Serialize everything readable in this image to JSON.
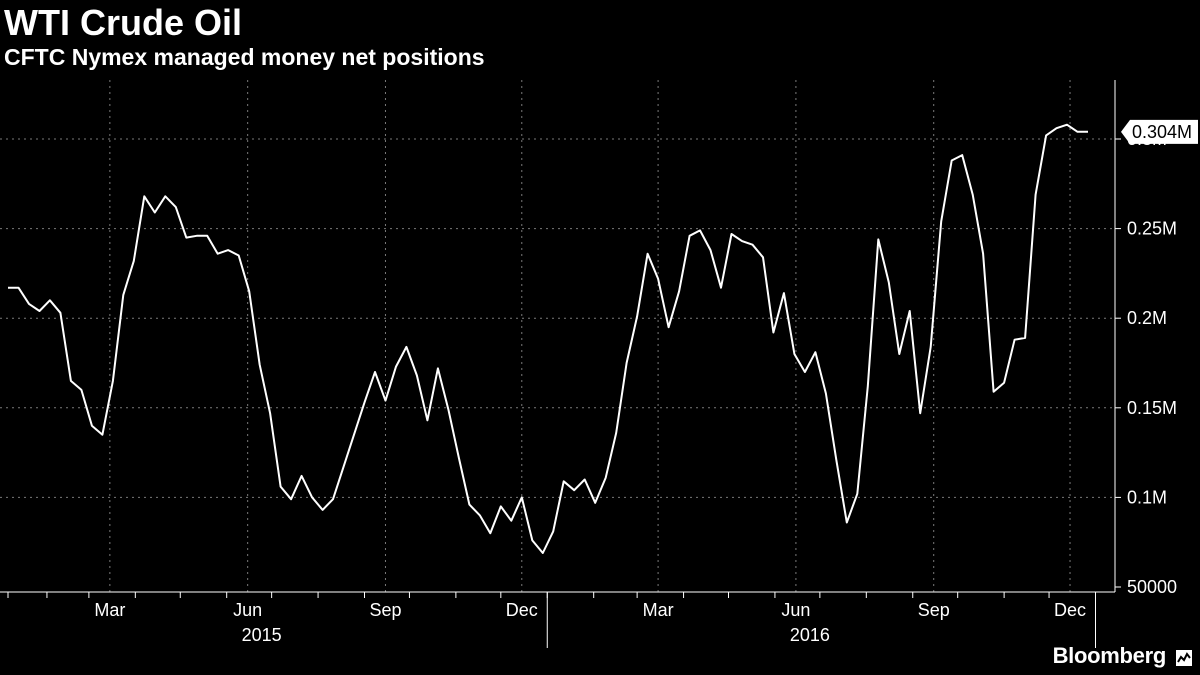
{
  "header": {
    "title": "WTI Crude Oil",
    "subtitle": "CFTC Nymex managed money net positions"
  },
  "footer": {
    "brand": "Bloomberg",
    "brand_icon": "chart-icon"
  },
  "colors": {
    "background": "#000000",
    "line": "#ffffff",
    "grid": "#7a7a7a"
  },
  "chart_data": {
    "type": "line",
    "title": "WTI Crude Oil",
    "subtitle": "CFTC Nymex managed money net positions",
    "y_axis": {
      "position": "right",
      "ticks": [
        {
          "value": 50000,
          "label": "50000"
        },
        {
          "value": 100000,
          "label": "0.1M"
        },
        {
          "value": 150000,
          "label": "0.15M"
        },
        {
          "value": 200000,
          "label": "0.2M"
        },
        {
          "value": 250000,
          "label": "0.25M"
        },
        {
          "value": 300000,
          "label": "0.3M"
        }
      ],
      "ylim": [
        50000,
        330000
      ]
    },
    "x_axis": {
      "range": [
        "2015-01-06",
        "2016-12-27"
      ],
      "month_ticks": [
        {
          "date": "2015-03-15",
          "label": "Mar"
        },
        {
          "date": "2015-06-15",
          "label": "Jun"
        },
        {
          "date": "2015-09-15",
          "label": "Sep"
        },
        {
          "date": "2015-12-15",
          "label": "Dec"
        },
        {
          "date": "2016-03-15",
          "label": "Mar"
        },
        {
          "date": "2016-06-15",
          "label": "Jun"
        },
        {
          "date": "2016-09-15",
          "label": "Sep"
        },
        {
          "date": "2016-12-15",
          "label": "Dec"
        }
      ],
      "year_labels": [
        {
          "date": "2015-07-01",
          "label": "2015"
        },
        {
          "date": "2016-07-01",
          "label": "2016"
        }
      ],
      "year_separators": [
        "2016-01-01",
        "2017-01-01"
      ]
    },
    "last_value": {
      "value": 304000,
      "label": "0.304M"
    },
    "grid": true,
    "legend": "none",
    "series": [
      {
        "x": [
          "2015-01-06",
          "2015-01-13",
          "2015-01-20",
          "2015-01-27",
          "2015-02-03",
          "2015-02-10",
          "2015-02-17",
          "2015-02-24",
          "2015-03-03",
          "2015-03-10",
          "2015-03-17",
          "2015-03-24",
          "2015-03-31",
          "2015-04-07",
          "2015-04-14",
          "2015-04-21",
          "2015-04-28",
          "2015-05-05",
          "2015-05-12",
          "2015-05-19",
          "2015-05-26",
          "2015-06-02",
          "2015-06-09",
          "2015-06-16",
          "2015-06-23",
          "2015-06-30",
          "2015-07-07",
          "2015-07-14",
          "2015-07-21",
          "2015-07-28",
          "2015-08-04",
          "2015-08-11",
          "2015-08-18",
          "2015-08-25",
          "2015-09-01",
          "2015-09-08",
          "2015-09-15",
          "2015-09-22",
          "2015-09-29",
          "2015-10-06",
          "2015-10-13",
          "2015-10-20",
          "2015-10-27",
          "2015-11-03",
          "2015-11-10",
          "2015-11-17",
          "2015-11-24",
          "2015-12-01",
          "2015-12-08",
          "2015-12-15",
          "2015-12-22",
          "2015-12-29",
          "2016-01-05",
          "2016-01-12",
          "2016-01-19",
          "2016-01-26",
          "2016-02-02",
          "2016-02-09",
          "2016-02-16",
          "2016-02-23",
          "2016-03-01",
          "2016-03-08",
          "2016-03-15",
          "2016-03-22",
          "2016-03-29",
          "2016-04-05",
          "2016-04-12",
          "2016-04-19",
          "2016-04-26",
          "2016-05-03",
          "2016-05-10",
          "2016-05-17",
          "2016-05-24",
          "2016-05-31",
          "2016-06-07",
          "2016-06-14",
          "2016-06-21",
          "2016-06-28",
          "2016-07-05",
          "2016-07-12",
          "2016-07-19",
          "2016-07-26",
          "2016-08-02",
          "2016-08-09",
          "2016-08-16",
          "2016-08-23",
          "2016-08-30",
          "2016-09-06",
          "2016-09-13",
          "2016-09-20",
          "2016-09-27",
          "2016-10-04",
          "2016-10-11",
          "2016-10-18",
          "2016-10-25",
          "2016-11-01",
          "2016-11-08",
          "2016-11-15",
          "2016-11-22",
          "2016-11-29",
          "2016-12-06",
          "2016-12-13",
          "2016-12-20",
          "2016-12-27"
        ],
        "y": [
          217000,
          217000,
          208000,
          204000,
          210000,
          203000,
          165000,
          160000,
          140000,
          135000,
          165000,
          213000,
          232000,
          268000,
          259000,
          268000,
          262000,
          245000,
          246000,
          246000,
          236000,
          238000,
          235000,
          215000,
          174000,
          147000,
          106000,
          99000,
          112000,
          100000,
          93000,
          99000,
          117000,
          135000,
          153000,
          170000,
          154000,
          173000,
          184000,
          168000,
          143000,
          172000,
          149000,
          122000,
          96000,
          90000,
          80000,
          95000,
          87000,
          100000,
          76000,
          69000,
          81000,
          109000,
          104000,
          110000,
          97000,
          111000,
          136000,
          175000,
          201000,
          236000,
          222000,
          195000,
          215000,
          246000,
          249000,
          238000,
          217000,
          247000,
          243000,
          241000,
          234000,
          192000,
          214000,
          180000,
          170000,
          181000,
          158000,
          121000,
          86000,
          102000,
          162000,
          244000,
          220000,
          180000,
          204000,
          147000,
          184000,
          254000,
          288000,
          291000,
          269000,
          236000,
          159000,
          164000,
          188000,
          189000,
          269000,
          302000,
          306000,
          308000,
          304000,
          304000
        ]
      }
    ]
  }
}
